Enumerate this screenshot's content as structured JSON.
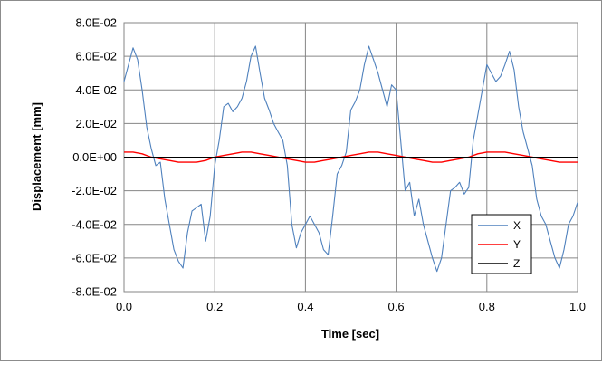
{
  "chart_data": {
    "type": "line",
    "title": "",
    "xlabel": "Time [sec]",
    "ylabel": "Displacement [mm]",
    "xlim": [
      0,
      1.0
    ],
    "ylim": [
      -0.08,
      0.08
    ],
    "xticks": [
      0,
      0.2,
      0.4,
      0.6,
      0.8,
      1.0
    ],
    "xtick_labels": [
      "0.0",
      "0.2",
      "0.4",
      "0.6",
      "0.8",
      "1.0"
    ],
    "yticks": [
      0.08,
      0.06,
      0.04,
      0.02,
      0,
      -0.02,
      -0.04,
      -0.06,
      -0.08
    ],
    "ytick_labels": [
      "8.0E-02",
      "6.0E-02",
      "4.0E-02",
      "2.0E-02",
      "0.0E+00",
      "-2.0E-02",
      "-4.0E-02",
      "-6.0E-02",
      "-8.0E-02"
    ],
    "grid": true,
    "legend_position": "bottom-right",
    "series": [
      {
        "name": "X",
        "color": "#4f81bd",
        "x": [
          0,
          0.01,
          0.02,
          0.03,
          0.04,
          0.05,
          0.06,
          0.07,
          0.08,
          0.09,
          0.1,
          0.11,
          0.12,
          0.13,
          0.14,
          0.15,
          0.16,
          0.17,
          0.18,
          0.19,
          0.2,
          0.21,
          0.22,
          0.23,
          0.24,
          0.25,
          0.26,
          0.27,
          0.28,
          0.29,
          0.3,
          0.31,
          0.32,
          0.33,
          0.34,
          0.35,
          0.36,
          0.37,
          0.38,
          0.39,
          0.4,
          0.41,
          0.42,
          0.43,
          0.44,
          0.45,
          0.46,
          0.47,
          0.48,
          0.49,
          0.5,
          0.51,
          0.52,
          0.53,
          0.54,
          0.55,
          0.56,
          0.57,
          0.58,
          0.59,
          0.6,
          0.61,
          0.62,
          0.63,
          0.64,
          0.65,
          0.66,
          0.67,
          0.68,
          0.69,
          0.7,
          0.71,
          0.72,
          0.73,
          0.74,
          0.75,
          0.76,
          0.77,
          0.78,
          0.79,
          0.8,
          0.81,
          0.82,
          0.83,
          0.84,
          0.85,
          0.86,
          0.87,
          0.88,
          0.89,
          0.9,
          0.91,
          0.92,
          0.93,
          0.94,
          0.95,
          0.96,
          0.97,
          0.98,
          0.99,
          1.0
        ],
        "y": [
          0.045,
          0.055,
          0.065,
          0.058,
          0.04,
          0.018,
          0.005,
          -0.005,
          -0.003,
          -0.025,
          -0.04,
          -0.055,
          -0.062,
          -0.066,
          -0.045,
          -0.032,
          -0.03,
          -0.028,
          -0.05,
          -0.035,
          -0.005,
          0.01,
          0.03,
          0.032,
          0.027,
          0.03,
          0.035,
          0.045,
          0.06,
          0.066,
          0.05,
          0.035,
          0.028,
          0.02,
          0.015,
          0.01,
          -0.005,
          -0.04,
          -0.054,
          -0.045,
          -0.04,
          -0.035,
          -0.04,
          -0.045,
          -0.055,
          -0.058,
          -0.035,
          -0.01,
          -0.005,
          0.003,
          0.028,
          0.033,
          0.04,
          0.055,
          0.066,
          0.058,
          0.05,
          0.04,
          0.03,
          0.043,
          0.04,
          0.01,
          -0.02,
          -0.015,
          -0.035,
          -0.025,
          -0.04,
          -0.05,
          -0.06,
          -0.068,
          -0.06,
          -0.04,
          -0.02,
          -0.018,
          -0.015,
          -0.022,
          -0.018,
          0.01,
          0.025,
          0.04,
          0.055,
          0.05,
          0.045,
          0.048,
          0.055,
          0.063,
          0.052,
          0.03,
          0.015,
          0.005,
          -0.005,
          -0.025,
          -0.035,
          -0.04,
          -0.05,
          -0.06,
          -0.066,
          -0.055,
          -0.04,
          -0.035,
          -0.027
        ]
      },
      {
        "name": "Y",
        "color": "#ff0000",
        "x": [
          0,
          0.02,
          0.04,
          0.06,
          0.08,
          0.1,
          0.12,
          0.14,
          0.16,
          0.18,
          0.2,
          0.22,
          0.24,
          0.26,
          0.28,
          0.3,
          0.32,
          0.34,
          0.36,
          0.38,
          0.4,
          0.42,
          0.44,
          0.46,
          0.48,
          0.5,
          0.52,
          0.54,
          0.56,
          0.58,
          0.6,
          0.62,
          0.64,
          0.66,
          0.68,
          0.7,
          0.72,
          0.74,
          0.76,
          0.78,
          0.8,
          0.82,
          0.84,
          0.86,
          0.88,
          0.9,
          0.92,
          0.94,
          0.96,
          0.98,
          1.0
        ],
        "y": [
          0.003,
          0.003,
          0.002,
          0.0,
          -0.001,
          -0.002,
          -0.003,
          -0.003,
          -0.003,
          -0.002,
          0.0,
          0.001,
          0.002,
          0.003,
          0.003,
          0.002,
          0.001,
          0.0,
          -0.001,
          -0.002,
          -0.003,
          -0.003,
          -0.002,
          -0.001,
          0.0,
          0.001,
          0.002,
          0.003,
          0.003,
          0.002,
          0.001,
          0.0,
          -0.001,
          -0.002,
          -0.003,
          -0.003,
          -0.002,
          -0.001,
          0.0,
          0.002,
          0.003,
          0.003,
          0.003,
          0.002,
          0.001,
          0.0,
          -0.001,
          -0.002,
          -0.003,
          -0.003,
          -0.003
        ]
      },
      {
        "name": "Z",
        "color": "#000000",
        "x": [
          0,
          1.0
        ],
        "y": [
          0,
          0
        ]
      }
    ]
  }
}
